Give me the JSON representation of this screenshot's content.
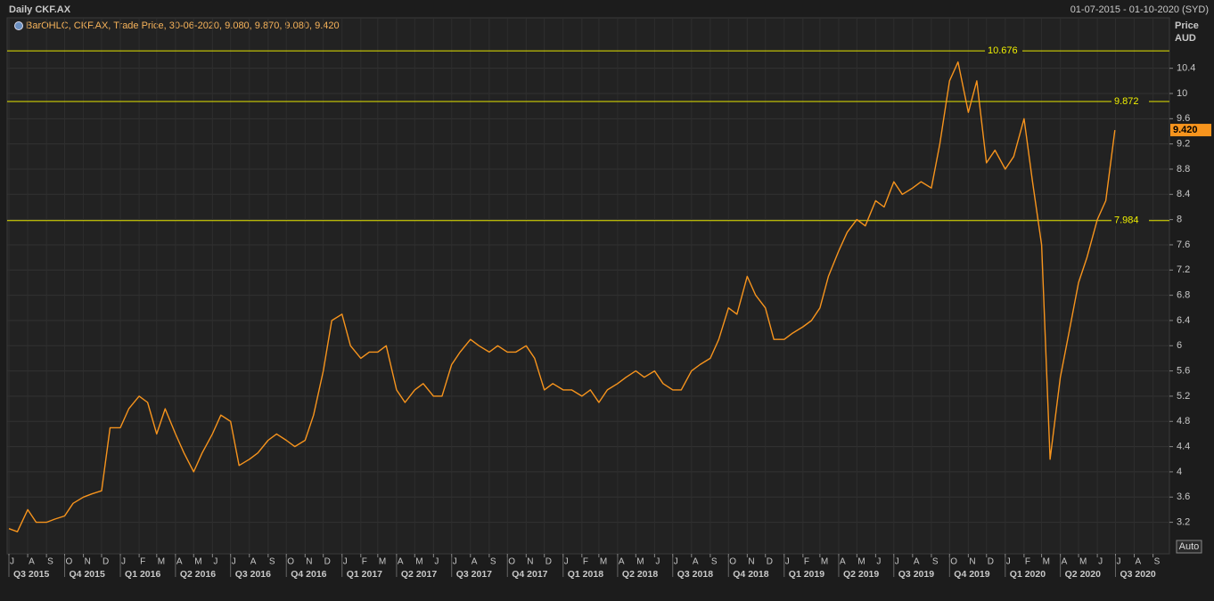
{
  "chart_data": {
    "type": "line",
    "title": "Daily CKF.AX",
    "date_range": "01-07-2015 - 01-10-2020 (SYD)",
    "legend": "BarOHLC, CKF.AX, Trade Price, 30-06-2020, 9.080, 9.870, 9.080, 9.420",
    "y_axis_label": "Price",
    "y_axis_unit": "AUD",
    "auto_button": "Auto",
    "xlim": [
      "01-07-2015",
      "01-10-2020"
    ],
    "ylim": [
      2.7,
      11.2
    ],
    "yticks": [
      3.2,
      3.6,
      4,
      4.4,
      4.8,
      5.2,
      5.6,
      6,
      6.4,
      6.8,
      7.2,
      7.6,
      8,
      8.4,
      8.8,
      9.2,
      9.6,
      10,
      10.4
    ],
    "grid": true,
    "categories": [
      "J",
      "A",
      "S",
      "O",
      "N",
      "D",
      "J",
      "F",
      "M",
      "A",
      "M",
      "J",
      "J",
      "A",
      "S",
      "O",
      "N",
      "D",
      "J",
      "F",
      "M",
      "A",
      "M",
      "J",
      "J",
      "A",
      "S",
      "O",
      "N",
      "D",
      "J",
      "F",
      "M",
      "A",
      "M",
      "J",
      "J",
      "A",
      "S",
      "O",
      "N",
      "D",
      "J",
      "F",
      "M",
      "A",
      "M",
      "J",
      "J",
      "A",
      "S",
      "O",
      "N",
      "D",
      "J",
      "F",
      "M",
      "A",
      "M",
      "J",
      "J",
      "A",
      "S"
    ],
    "quarters": [
      "Q3 2015",
      "Q4 2015",
      "Q1 2016",
      "Q2 2016",
      "Q3 2016",
      "Q4 2016",
      "Q1 2017",
      "Q2 2017",
      "Q3 2017",
      "Q4 2017",
      "Q1 2018",
      "Q2 2018",
      "Q3 2018",
      "Q4 2018",
      "Q1 2019",
      "Q2 2019",
      "Q3 2019",
      "Q4 2019",
      "Q1 2020",
      "Q2 2020",
      "Q3 2020"
    ],
    "x": [
      "01-07-2015",
      "15-07-2015",
      "01-08-2015",
      "15-08-2015",
      "01-09-2015",
      "15-09-2015",
      "01-10-2015",
      "15-10-2015",
      "01-11-2015",
      "15-11-2015",
      "01-12-2015",
      "15-12-2015",
      "01-01-2016",
      "15-01-2016",
      "01-02-2016",
      "15-02-2016",
      "01-03-2016",
      "15-03-2016",
      "01-04-2016",
      "15-04-2016",
      "01-05-2016",
      "15-05-2016",
      "01-06-2016",
      "15-06-2016",
      "01-07-2016",
      "15-07-2016",
      "01-08-2016",
      "15-08-2016",
      "01-09-2016",
      "15-09-2016",
      "01-10-2016",
      "15-10-2016",
      "01-11-2016",
      "15-11-2016",
      "01-12-2016",
      "15-12-2016",
      "01-01-2017",
      "15-01-2017",
      "01-02-2017",
      "15-02-2017",
      "01-03-2017",
      "15-03-2017",
      "01-04-2017",
      "15-04-2017",
      "01-05-2017",
      "15-05-2017",
      "01-06-2017",
      "15-06-2017",
      "01-07-2017",
      "15-07-2017",
      "01-08-2017",
      "15-08-2017",
      "01-09-2017",
      "15-09-2017",
      "01-10-2017",
      "15-10-2017",
      "01-11-2017",
      "15-11-2017",
      "01-12-2017",
      "15-12-2017",
      "01-01-2018",
      "15-01-2018",
      "01-02-2018",
      "15-02-2018",
      "01-03-2018",
      "15-03-2018",
      "01-04-2018",
      "15-04-2018",
      "01-05-2018",
      "15-05-2018",
      "01-06-2018",
      "15-06-2018",
      "01-07-2018",
      "15-07-2018",
      "01-08-2018",
      "15-08-2018",
      "01-09-2018",
      "15-09-2018",
      "01-10-2018",
      "15-10-2018",
      "01-11-2018",
      "15-11-2018",
      "01-12-2018",
      "15-12-2018",
      "01-01-2019",
      "15-01-2019",
      "01-02-2019",
      "15-02-2019",
      "01-03-2019",
      "15-03-2019",
      "01-04-2019",
      "15-04-2019",
      "01-05-2019",
      "15-05-2019",
      "01-06-2019",
      "15-06-2019",
      "01-07-2019",
      "15-07-2019",
      "01-08-2019",
      "15-08-2019",
      "01-09-2019",
      "15-09-2019",
      "01-10-2019",
      "15-10-2019",
      "01-11-2019",
      "15-11-2019",
      "01-12-2019",
      "15-12-2019",
      "01-01-2020",
      "15-01-2020",
      "01-02-2020",
      "15-02-2020",
      "01-03-2020",
      "15-03-2020",
      "01-04-2020",
      "15-04-2020",
      "01-05-2020",
      "15-05-2020",
      "01-06-2020",
      "15-06-2020",
      "30-06-2020"
    ],
    "series": [
      {
        "name": "CKF.AX",
        "color": "#f7941d",
        "values": [
          3.1,
          3.05,
          3.4,
          3.2,
          3.2,
          3.25,
          3.3,
          3.5,
          3.6,
          3.65,
          3.7,
          4.7,
          4.7,
          5.0,
          5.2,
          5.1,
          4.6,
          5.0,
          4.6,
          4.3,
          4.0,
          4.3,
          4.6,
          4.9,
          4.8,
          4.1,
          4.2,
          4.3,
          4.5,
          4.6,
          4.5,
          4.4,
          4.5,
          4.9,
          5.6,
          6.4,
          6.5,
          6.0,
          5.8,
          5.9,
          5.9,
          6.0,
          5.3,
          5.1,
          5.3,
          5.4,
          5.2,
          5.2,
          5.7,
          5.9,
          6.1,
          6.0,
          5.9,
          6.0,
          5.9,
          5.9,
          6.0,
          5.8,
          5.3,
          5.4,
          5.3,
          5.3,
          5.2,
          5.3,
          5.1,
          5.3,
          5.4,
          5.5,
          5.6,
          5.5,
          5.6,
          5.4,
          5.3,
          5.3,
          5.6,
          5.7,
          5.8,
          6.1,
          6.6,
          6.5,
          7.1,
          6.8,
          6.6,
          6.1,
          6.1,
          6.2,
          6.3,
          6.4,
          6.6,
          7.1,
          7.5,
          7.8,
          8.0,
          7.9,
          8.3,
          8.2,
          8.6,
          8.4,
          8.5,
          8.6,
          8.5,
          9.2,
          10.2,
          10.5,
          9.7,
          10.2,
          8.9,
          9.1,
          8.8,
          9.0,
          9.6,
          8.6,
          7.6,
          4.2,
          5.5,
          6.2,
          7.0,
          7.4,
          8.0,
          8.3,
          9.42
        ]
      }
    ],
    "lines": [
      {
        "value": 10.676
      },
      {
        "value": 9.872
      },
      {
        "value": 7.984
      }
    ],
    "last_price": {
      "value": 9.42,
      "label": "9.420"
    }
  }
}
